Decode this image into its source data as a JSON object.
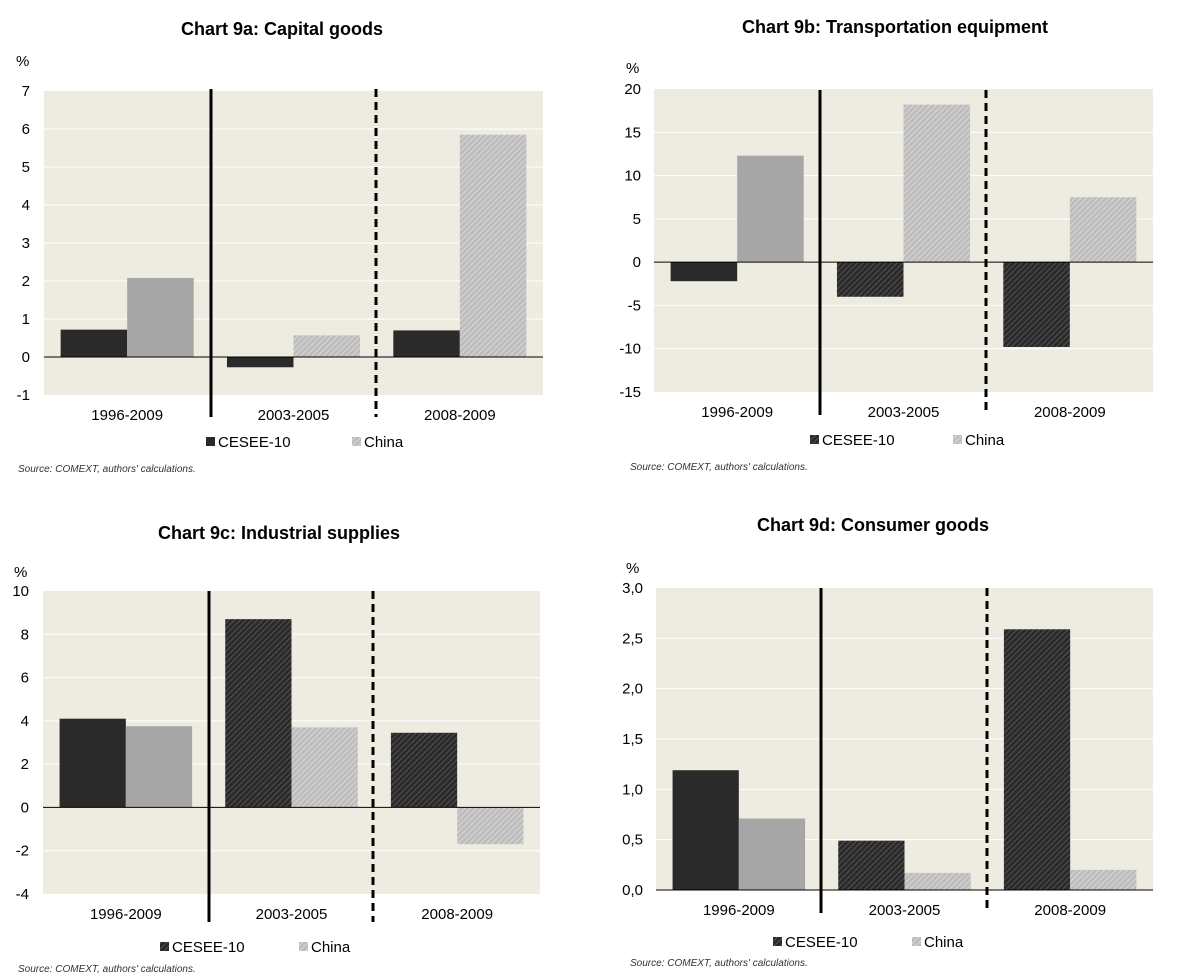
{
  "source_note": "Source: COMEXT, authors' calculations.",
  "unit_label": "%",
  "colors": {
    "background": "#ffffff",
    "plot_bg": "#eeebe0",
    "cesee": "#2a2a2a",
    "china": "#a6a6a6",
    "gridline": "#ffffff",
    "axis": "#000000"
  },
  "chart_data": [
    {
      "type": "bar",
      "title": "Chart 9a: Capital goods",
      "ylabel": "%",
      "xlabel": "",
      "categories": [
        "1996-2009",
        "2003-2005",
        "2008-2009"
      ],
      "series": [
        {
          "name": "CESEE-10",
          "values": [
            0.72,
            -0.27,
            0.7
          ]
        },
        {
          "name": "China",
          "values": [
            2.08,
            0.57,
            5.85
          ]
        }
      ],
      "ylim": [
        -1,
        7
      ],
      "yticks": [
        "-1",
        "0",
        "1",
        "2",
        "3",
        "4",
        "5",
        "6",
        "7"
      ],
      "grid": true,
      "legend": "bottom",
      "separators": [
        "solid",
        "dashed"
      ]
    },
    {
      "type": "bar",
      "title": "Chart 9b: Transportation equipment",
      "ylabel": "%",
      "xlabel": "",
      "categories": [
        "1996-2009",
        "2003-2005",
        "2008-2009"
      ],
      "series": [
        {
          "name": "CESEE-10",
          "values": [
            -2.2,
            -4.0,
            -9.8
          ]
        },
        {
          "name": "China",
          "values": [
            12.3,
            18.2,
            7.5
          ]
        }
      ],
      "ylim": [
        -15,
        20
      ],
      "yticks": [
        "-15",
        "-10",
        "-5",
        "0",
        "5",
        "10",
        "15",
        "20"
      ],
      "grid": true,
      "legend": "bottom",
      "separators": [
        "solid",
        "dashed"
      ]
    },
    {
      "type": "bar",
      "title": "Chart 9c: Industrial supplies",
      "ylabel": "%",
      "xlabel": "",
      "categories": [
        "1996-2009",
        "2003-2005",
        "2008-2009"
      ],
      "series": [
        {
          "name": "CESEE-10",
          "values": [
            4.1,
            8.7,
            3.45
          ]
        },
        {
          "name": "China",
          "values": [
            3.75,
            3.7,
            -1.7
          ]
        }
      ],
      "ylim": [
        -4,
        10
      ],
      "yticks": [
        "-4",
        "-2",
        "0",
        "2",
        "4",
        "6",
        "8",
        "10"
      ],
      "grid": true,
      "legend": "bottom",
      "separators": [
        "solid",
        "dashed"
      ]
    },
    {
      "type": "bar",
      "title": "Chart 9d: Consumer goods",
      "ylabel": "%",
      "xlabel": "",
      "categories": [
        "1996-2009",
        "2003-2005",
        "2008-2009"
      ],
      "series": [
        {
          "name": "CESEE-10",
          "values": [
            1.19,
            0.49,
            2.59
          ]
        },
        {
          "name": "China",
          "values": [
            0.71,
            0.17,
            0.2
          ]
        }
      ],
      "ylim": [
        0,
        3
      ],
      "yticks": [
        "0,0",
        "0,5",
        "1,0",
        "1,5",
        "2,0",
        "2,5",
        "3,0"
      ],
      "grid": true,
      "legend": "bottom",
      "separators": [
        "solid",
        "dashed"
      ]
    }
  ]
}
